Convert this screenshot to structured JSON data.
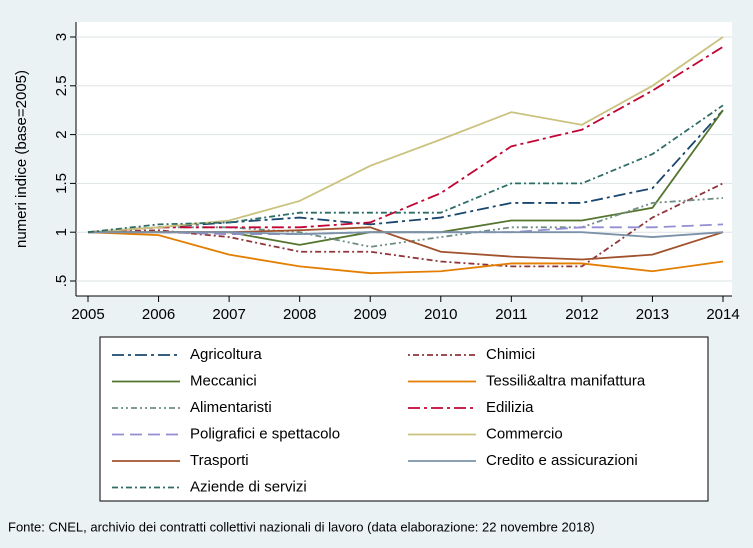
{
  "chart_data": {
    "type": "line",
    "y_label": "numeri indice (base=2005)",
    "source": "Fonte: CNEL, archivio dei contratti collettivi nazionali di lavoro (data elaborazione: 22 novembre 2018)",
    "x": [
      2005,
      2006,
      2007,
      2008,
      2009,
      2010,
      2011,
      2012,
      2013,
      2014
    ],
    "xlim": [
      2005,
      2014
    ],
    "xticks": [
      2005,
      2006,
      2007,
      2008,
      2009,
      2010,
      2011,
      2012,
      2013,
      2014
    ],
    "ylim": [
      0.5,
      3
    ],
    "yticks": [
      {
        "value": 0.5,
        "label": ".5"
      },
      1,
      1.5,
      2,
      2.5,
      3
    ],
    "grid": true,
    "series": [
      {
        "name": "Agricoltura",
        "color": "#1a476f",
        "dash": "12,4,3,4",
        "values": [
          1,
          1.05,
          1.1,
          1.15,
          1.08,
          1.15,
          1.3,
          1.3,
          1.45,
          2.25
        ]
      },
      {
        "name": "Chimici",
        "color": "#90353b",
        "dash": "2,3,6,3",
        "values": [
          1,
          1.02,
          0.95,
          0.8,
          0.8,
          0.7,
          0.65,
          0.65,
          1.15,
          1.5
        ]
      },
      {
        "name": "Meccanici",
        "color": "#55752f",
        "dash": "",
        "values": [
          1,
          1.0,
          1.0,
          0.87,
          1.0,
          1.0,
          1.12,
          1.12,
          1.25,
          2.25
        ]
      },
      {
        "name": "Tessili&altra manifattura",
        "color": "#e37e00",
        "dash": "",
        "values": [
          1,
          0.97,
          0.77,
          0.65,
          0.58,
          0.6,
          0.68,
          0.68,
          0.6,
          0.7
        ]
      },
      {
        "name": "Alimentaristi",
        "color": "#6e8e84",
        "dash": "6,3,2,3,2,3",
        "values": [
          1,
          1.05,
          1.05,
          1.0,
          0.85,
          0.95,
          1.05,
          1.05,
          1.3,
          1.35
        ]
      },
      {
        "name": "Edilizia",
        "color": "#c10534",
        "dash": "12,4,3,4",
        "values": [
          1,
          1.05,
          1.05,
          1.05,
          1.1,
          1.4,
          1.88,
          2.05,
          2.45,
          2.9
        ]
      },
      {
        "name": "Poligrafici e spettacolo",
        "color": "#938dd2",
        "dash": "12,6",
        "values": [
          1,
          1.0,
          0.98,
          0.98,
          1.0,
          1.0,
          1.0,
          1.05,
          1.05,
          1.08
        ]
      },
      {
        "name": "Commercio",
        "color": "#cac27e",
        "dash": "",
        "values": [
          1,
          1.05,
          1.12,
          1.32,
          1.68,
          1.95,
          2.23,
          2.1,
          2.5,
          3.0
        ]
      },
      {
        "name": "Trasporti",
        "color": "#a0522d",
        "dash": "",
        "values": [
          1,
          1.0,
          1.0,
          1.02,
          1.05,
          0.8,
          0.75,
          0.72,
          0.77,
          1.0
        ]
      },
      {
        "name": "Credito e assicurazioni",
        "color": "#7b92a8",
        "dash": "",
        "values": [
          1,
          1.0,
          1.0,
          0.98,
          1.0,
          1.0,
          1.0,
          1.0,
          0.95,
          1.0
        ]
      },
      {
        "name": "Aziende di servizi",
        "color": "#2d6d66",
        "dash": "6,3,2,3",
        "values": [
          1,
          1.08,
          1.1,
          1.2,
          1.2,
          1.2,
          1.5,
          1.5,
          1.8,
          2.3
        ]
      }
    ]
  }
}
